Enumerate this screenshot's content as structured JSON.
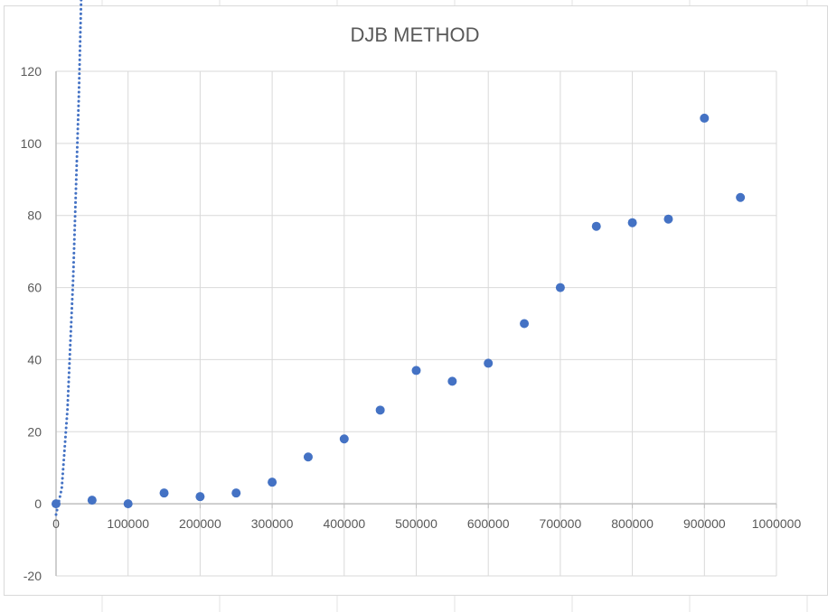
{
  "chart_data": {
    "type": "scatter",
    "title": "DJB METHOD",
    "xlabel": "",
    "ylabel": "",
    "xlim": [
      0,
      1000000
    ],
    "ylim": [
      -20,
      120
    ],
    "x_ticks": [
      "0",
      "100000",
      "200000",
      "300000",
      "400000",
      "500000",
      "600000",
      "700000",
      "800000",
      "900000",
      "1000000"
    ],
    "y_ticks": [
      "-20",
      "0",
      "20",
      "40",
      "60",
      "80",
      "100",
      "120"
    ],
    "grid": true,
    "legend": "none",
    "marker_color": "#4472c4",
    "trendline": {
      "type": "polynomial",
      "style": "dotted",
      "color": "#4472c4",
      "coefficients": [
        -3,
        0,
        1.16e-07
      ],
      "x_range": [
        0,
        950000
      ]
    },
    "series": [
      {
        "points": [
          {
            "x": 0,
            "y": 0
          },
          {
            "x": 50000,
            "y": 1
          },
          {
            "x": 100000,
            "y": 0
          },
          {
            "x": 150000,
            "y": 3
          },
          {
            "x": 200000,
            "y": 2
          },
          {
            "x": 250000,
            "y": 3
          },
          {
            "x": 300000,
            "y": 6
          },
          {
            "x": 350000,
            "y": 13
          },
          {
            "x": 400000,
            "y": 18
          },
          {
            "x": 450000,
            "y": 26
          },
          {
            "x": 500000,
            "y": 37
          },
          {
            "x": 550000,
            "y": 34
          },
          {
            "x": 600000,
            "y": 39
          },
          {
            "x": 650000,
            "y": 50
          },
          {
            "x": 700000,
            "y": 60
          },
          {
            "x": 750000,
            "y": 77
          },
          {
            "x": 800000,
            "y": 78
          },
          {
            "x": 850000,
            "y": 79
          },
          {
            "x": 900000,
            "y": 107
          },
          {
            "x": 950000,
            "y": 85
          }
        ]
      }
    ]
  }
}
